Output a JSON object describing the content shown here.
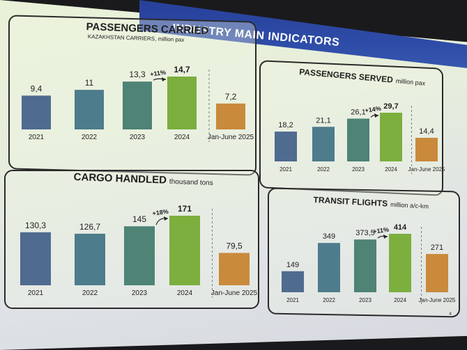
{
  "slide": {
    "title": "INDUSTRY MAIN INDICATORS",
    "page_number": "4"
  },
  "colors": {
    "bar_2021": "#4f6b8f",
    "bar_2022": "#4d7c8c",
    "bar_2023": "#4e8376",
    "bar_2024": "#7caf3e",
    "bar_partial": "#c98a3c",
    "title_band": "#2e4da8"
  },
  "panels": {
    "passengers_carried": {
      "title": "PASSENGERS CARRIED",
      "subtitle": "KAZAKHSTAN CARRIERS, million pax",
      "growth": "+11%"
    },
    "passengers_served": {
      "title": "PASSENGERS SERVED",
      "unit": "million pax",
      "growth": "+14%"
    },
    "cargo_handled": {
      "title": "CARGO HANDLED",
      "unit": "thousand tons",
      "growth": "+18%"
    },
    "transit_flights": {
      "title": "TRANSIT FLIGHTS",
      "unit": "million a/c-km",
      "growth": "+11%"
    }
  },
  "chart_data": [
    {
      "id": "passengers_carried",
      "type": "bar",
      "title": "PASSENGERS CARRIED",
      "subtitle": "KAZAKHSTAN CARRIERS, million pax",
      "categories": [
        "2021",
        "2022",
        "2023",
        "2024",
        "Jan-June 2025"
      ],
      "values": [
        9.4,
        11,
        13.3,
        14.7,
        7.2
      ],
      "value_labels": [
        "9,4",
        "11",
        "13,3",
        "14,7",
        "7,2"
      ],
      "annotation": "+11%"
    },
    {
      "id": "passengers_served",
      "type": "bar",
      "title": "PASSENGERS SERVED",
      "ylabel": "million pax",
      "categories": [
        "2021",
        "2022",
        "2023",
        "2024",
        "Jan-June 2025"
      ],
      "values": [
        18.2,
        21.1,
        26.1,
        29.7,
        14.4
      ],
      "value_labels": [
        "18,2",
        "21,1",
        "26,1",
        "29,7",
        "14,4"
      ],
      "annotation": "+14%"
    },
    {
      "id": "cargo_handled",
      "type": "bar",
      "title": "CARGO HANDLED",
      "ylabel": "thousand tons",
      "categories": [
        "2021",
        "2022",
        "2023",
        "2024",
        "Jan-June 2025"
      ],
      "values": [
        130.3,
        126.7,
        145,
        171,
        79.5
      ],
      "value_labels": [
        "130,3",
        "126,7",
        "145",
        "171",
        "79,5"
      ],
      "annotation": "+18%"
    },
    {
      "id": "transit_flights",
      "type": "bar",
      "title": "TRANSIT FLIGHTS",
      "ylabel": "million a/c-km",
      "categories": [
        "2021",
        "2022",
        "2023",
        "2024",
        "Jan-June 2025"
      ],
      "values": [
        149,
        349,
        373.5,
        414,
        271
      ],
      "value_labels": [
        "149",
        "349",
        "373,5",
        "414",
        "271"
      ],
      "annotation": "+11%"
    }
  ]
}
